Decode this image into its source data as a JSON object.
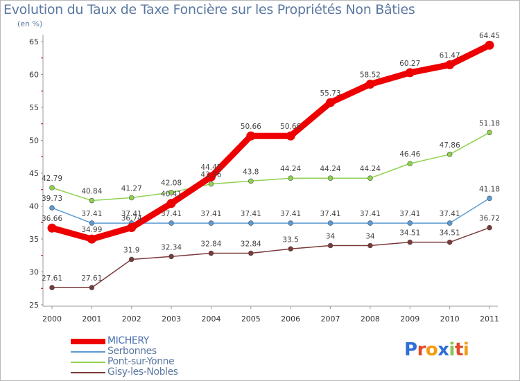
{
  "title": "Evolution du Taux de Taxe Foncière sur les Propriétés Non Bâties",
  "unit_label": "(en %)",
  "chart_data": {
    "type": "line",
    "title": "Evolution du Taux de Taxe Foncière sur les Propriétés Non Bâties",
    "ylabel": "(en %)",
    "xlabel": "",
    "x": [
      "2000",
      "2001",
      "2002",
      "2003",
      "2004",
      "2005",
      "2006",
      "2007",
      "2008",
      "2009",
      "2010",
      "2011"
    ],
    "ylim": [
      25,
      65
    ],
    "yticks": [
      "25",
      "30",
      "35",
      "40",
      "45",
      "50",
      "55",
      "60",
      "65"
    ],
    "legend_position": "bottom-left",
    "series": [
      {
        "name": "MICHERY",
        "color": "#ee0000",
        "values": [
          36.66,
          34.99,
          36.74,
          40.41,
          44.45,
          50.66,
          50.66,
          55.73,
          58.52,
          60.27,
          61.47,
          64.45
        ],
        "labels": [
          "36.66",
          "34.99",
          "36.74",
          "40.41",
          "44.45",
          "50.66",
          "50.66",
          "55.73",
          "58.52",
          "60.27",
          "61.47",
          "64.45"
        ]
      },
      {
        "name": "Serbonnes",
        "color": "#5b9bd5",
        "values": [
          39.73,
          37.41,
          37.41,
          37.41,
          37.41,
          37.41,
          37.41,
          37.41,
          37.41,
          37.41,
          37.41,
          41.18
        ],
        "labels": [
          "39.73",
          "37.41",
          "37.41",
          "37.41",
          "37.41",
          "37.41",
          "37.41",
          "37.41",
          "37.41",
          "37.41",
          "37.41",
          "41.18"
        ]
      },
      {
        "name": "Pont-sur-Yonne",
        "color": "#8fd14f",
        "values": [
          42.79,
          40.84,
          41.27,
          42.08,
          43.36,
          43.8,
          44.24,
          44.24,
          44.24,
          46.46,
          47.86,
          51.18
        ],
        "labels": [
          "42.79",
          "40.84",
          "41.27",
          "42.08",
          "43.36",
          "43.8",
          "44.24",
          "44.24",
          "44.24",
          "46.46",
          "47.86",
          "51.18"
        ]
      },
      {
        "name": "Gisy-les-Nobles",
        "color": "#7a3a3a",
        "values": [
          27.61,
          27.61,
          31.9,
          32.34,
          32.84,
          32.84,
          33.5,
          34,
          34,
          34.51,
          34.51,
          36.72
        ],
        "labels": [
          "27.61",
          "27.61",
          "31.9",
          "32.34",
          "32.84",
          "32.84",
          "33.5",
          "34",
          "34",
          "34.51",
          "34.51",
          "36.72"
        ]
      }
    ]
  },
  "logo": {
    "text": "Proxiti",
    "letters": [
      "P",
      "r",
      "o",
      "x",
      "i",
      "t",
      "i"
    ]
  }
}
